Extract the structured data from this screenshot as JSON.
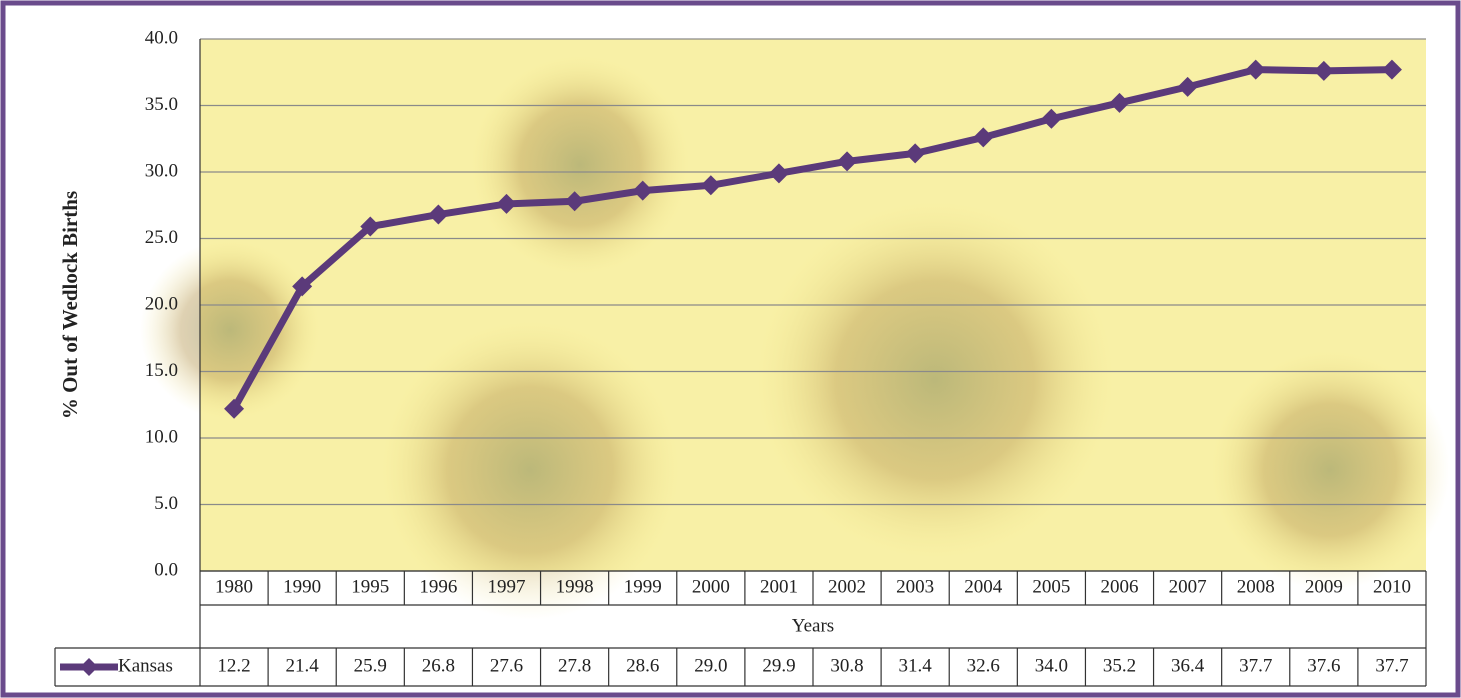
{
  "chart_data": {
    "type": "line",
    "x_label": "Years",
    "y_label": "% Out of Wedlock Births",
    "categories": [
      "1980",
      "1990",
      "1995",
      "1996",
      "1997",
      "1998",
      "1999",
      "2000",
      "2001",
      "2002",
      "2003",
      "2004",
      "2005",
      "2006",
      "2007",
      "2008",
      "2009",
      "2010"
    ],
    "series": [
      {
        "name": "Kansas",
        "color": "#5b3a7a",
        "values": [
          12.2,
          21.4,
          25.9,
          26.8,
          27.6,
          27.8,
          28.6,
          29.0,
          29.9,
          30.8,
          31.4,
          32.6,
          34.0,
          35.2,
          36.4,
          37.7,
          37.6,
          37.7
        ],
        "value_labels": [
          "12.2",
          "21.4",
          "25.9",
          "26.8",
          "27.6",
          "27.8",
          "28.6",
          "29.0",
          "29.9",
          "30.8",
          "31.4",
          "32.6",
          "34.0",
          "35.2",
          "36.4",
          "37.7",
          "37.6",
          "37.7"
        ]
      }
    ],
    "ylim": [
      0,
      40
    ],
    "yticks": [
      {
        "value": 0,
        "label": "0.0"
      },
      {
        "value": 5,
        "label": "5.0"
      },
      {
        "value": 10,
        "label": "10.0"
      },
      {
        "value": 15,
        "label": "15.0"
      },
      {
        "value": 20,
        "label": "20.0"
      },
      {
        "value": 25,
        "label": "25.0"
      },
      {
        "value": 30,
        "label": "30.0"
      },
      {
        "value": 35,
        "label": "35.0"
      },
      {
        "value": 40,
        "label": "40.0"
      }
    ],
    "grid": true
  }
}
